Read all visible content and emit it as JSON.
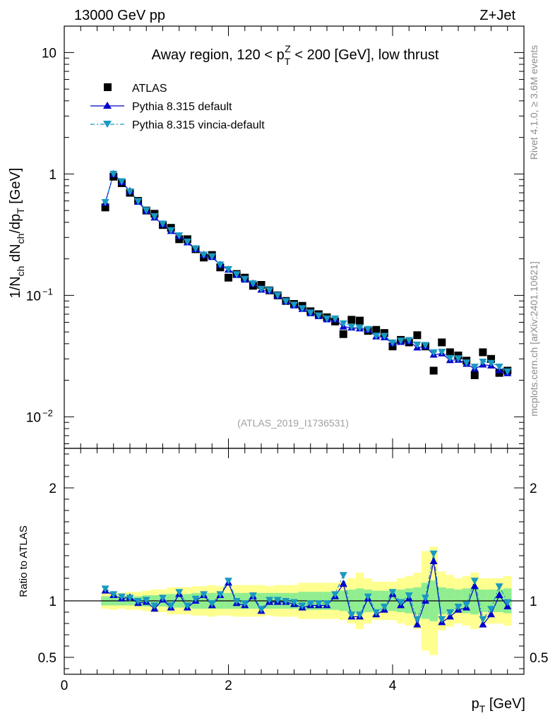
{
  "header": {
    "energy_label": "13000 GeV pp",
    "process_label": "Z+Jet",
    "side_rivet": "Rivet 4.1.0, ≥ 3.6M events",
    "side_mcplots": "mcplots.cern.ch [arXiv:2401.10621]"
  },
  "chart_data": {
    "type": "scatter",
    "title": "Away region, 120 < p_T^Z < 200 [GeV], low thrust",
    "title_parts": {
      "pre": "Away region, 120 < p",
      "sup": "Z",
      "sub": "T",
      "post": " < 200 [GeV], low thrust"
    },
    "watermark": "(ATLAS_2019_I1736531)",
    "xlabel": "p_T [GeV]",
    "ylabel": "1/N_ch dN_ch/dp_T [GeV]",
    "ratio_ylabel": "Ratio to ATLAS",
    "xlim": [
      0,
      5.6
    ],
    "ylim_log": [
      0.0055,
      16.5
    ],
    "ratio_ylim": [
      0.35,
      2.35
    ],
    "x_ticks": [
      {
        "value": 0,
        "label": "0"
      },
      {
        "value": 2,
        "label": "2"
      },
      {
        "value": 4,
        "label": "4"
      }
    ],
    "y_ticks": [
      {
        "value": 10,
        "label": "10"
      },
      {
        "value": 1,
        "label": "1"
      },
      {
        "value": 0.1,
        "label": "10",
        "exp": "−1"
      },
      {
        "value": 0.01,
        "label": "10",
        "exp": "−2"
      }
    ],
    "ratio_ticks": [
      {
        "value": 2,
        "label": "2"
      },
      {
        "value": 1,
        "label": "1"
      },
      {
        "value": 0.5,
        "label": "0.5"
      }
    ],
    "legend": [
      {
        "key": "atlas",
        "label": "ATLAS"
      },
      {
        "key": "pythia_default",
        "label": "Pythia 8.315 default"
      },
      {
        "key": "pythia_vincia",
        "label": "Pythia 8.315 vincia-default"
      }
    ],
    "colors": {
      "data": "#000000",
      "default": "#0000cc",
      "vincia": "#1899c2",
      "band_inner": "#90ee90",
      "band_outer": "#ffff90"
    },
    "x": [
      0.5,
      0.6,
      0.7,
      0.8,
      0.9,
      1.0,
      1.1,
      1.2,
      1.3,
      1.4,
      1.5,
      1.6,
      1.7,
      1.8,
      1.9,
      2.0,
      2.1,
      2.2,
      2.3,
      2.4,
      2.5,
      2.6,
      2.7,
      2.8,
      2.9,
      3.0,
      3.1,
      3.2,
      3.3,
      3.4,
      3.5,
      3.6,
      3.7,
      3.8,
      3.9,
      4.0,
      4.1,
      4.2,
      4.3,
      4.4,
      4.5,
      4.6,
      4.7,
      4.8,
      4.9,
      5.0,
      5.1,
      5.2,
      5.3,
      5.4
    ],
    "series": [
      {
        "name": "ATLAS",
        "values": [
          0.53,
          0.95,
          0.84,
          0.7,
          0.6,
          0.5,
          0.47,
          0.38,
          0.36,
          0.29,
          0.29,
          0.24,
          0.205,
          0.215,
          0.17,
          0.14,
          0.15,
          0.14,
          0.12,
          0.122,
          0.11,
          0.1,
          0.09,
          0.085,
          0.082,
          0.074,
          0.07,
          0.066,
          0.061,
          0.048,
          0.063,
          0.062,
          0.051,
          0.052,
          0.049,
          0.038,
          0.043,
          0.041,
          0.047,
          0.038,
          0.024,
          0.041,
          0.034,
          0.032,
          0.029,
          0.022,
          0.034,
          0.03,
          0.023,
          0.024
        ],
        "outer_band": [
          0.07,
          0.08,
          0.07,
          0.08,
          0.08,
          0.09,
          0.1,
          0.1,
          0.12,
          0.12,
          0.12,
          0.13,
          0.13,
          0.14,
          0.13,
          0.13,
          0.14,
          0.14,
          0.14,
          0.14,
          0.13,
          0.14,
          0.14,
          0.14,
          0.16,
          0.16,
          0.16,
          0.16,
          0.16,
          0.17,
          0.2,
          0.25,
          0.2,
          0.17,
          0.17,
          0.17,
          0.2,
          0.22,
          0.25,
          0.44,
          0.48,
          0.26,
          0.23,
          0.2,
          0.22,
          0.25,
          0.2,
          0.2,
          0.2,
          0.22
        ],
        "inner_band": [
          0.04,
          0.04,
          0.04,
          0.04,
          0.04,
          0.05,
          0.05,
          0.05,
          0.06,
          0.06,
          0.06,
          0.07,
          0.07,
          0.07,
          0.07,
          0.07,
          0.07,
          0.07,
          0.07,
          0.07,
          0.07,
          0.07,
          0.07,
          0.07,
          0.08,
          0.08,
          0.08,
          0.08,
          0.08,
          0.09,
          0.1,
          0.11,
          0.1,
          0.09,
          0.09,
          0.09,
          0.1,
          0.11,
          0.12,
          0.16,
          0.18,
          0.12,
          0.11,
          0.1,
          0.11,
          0.12,
          0.1,
          0.1,
          0.1,
          0.11
        ]
      },
      {
        "name": "Pythia 8.315 default",
        "ratio": [
          1.09,
          1.05,
          1.02,
          1.03,
          0.98,
          0.99,
          0.93,
          1.01,
          0.94,
          1.06,
          0.94,
          1.0,
          1.05,
          0.96,
          1.05,
          1.16,
          0.98,
          0.96,
          1.04,
          0.91,
          0.99,
          0.99,
          0.99,
          0.97,
          0.94,
          0.96,
          0.96,
          0.96,
          1.04,
          1.15,
          0.86,
          0.86,
          1.02,
          0.88,
          0.92,
          1.06,
          0.96,
          1.02,
          0.79,
          1.0,
          1.35,
          0.81,
          0.86,
          0.92,
          0.94,
          1.13,
          0.79,
          0.88,
          1.05,
          0.95
        ]
      },
      {
        "name": "Pythia 8.315 vincia-default",
        "ratio": [
          1.11,
          1.06,
          1.04,
          1.03,
          1.0,
          1.01,
          0.96,
          1.03,
          0.96,
          1.08,
          0.96,
          1.02,
          1.06,
          0.98,
          1.06,
          1.18,
          1.0,
          0.98,
          1.05,
          0.93,
          1.01,
          1.01,
          1.0,
          0.99,
          0.96,
          0.98,
          0.98,
          0.98,
          1.06,
          1.23,
          0.88,
          0.88,
          1.04,
          0.9,
          0.95,
          1.08,
          0.99,
          1.05,
          0.84,
          1.03,
          1.42,
          0.84,
          0.9,
          0.95,
          0.97,
          1.18,
          0.84,
          0.93,
          1.13,
          0.99
        ]
      }
    ]
  }
}
